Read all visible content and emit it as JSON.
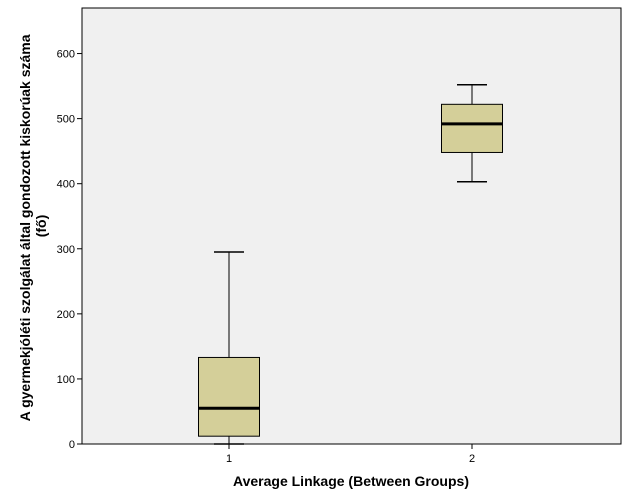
{
  "chart_data": {
    "type": "boxplot",
    "xlabel": "Average Linkage (Between Groups)",
    "ylabel_line1": "A gyermekjóléti szolgálat által gondozott kiskorúak száma",
    "ylabel_line2": "(fő)",
    "categories": [
      "1",
      "2"
    ],
    "ylim": [
      0,
      670
    ],
    "yticks": [
      0,
      100,
      200,
      300,
      400,
      500,
      600
    ],
    "ytick_labels": [
      "0",
      "100",
      "200",
      "300",
      "400",
      "500",
      "600"
    ],
    "boxes": [
      {
        "category": "1",
        "min": 0,
        "q1": 12,
        "median": 55,
        "q3": 133,
        "max": 295
      },
      {
        "category": "2",
        "min": 403,
        "q1": 448,
        "median": 492,
        "q3": 522,
        "max": 552
      }
    ],
    "grid": false,
    "colors": {
      "plot_background": "#f0f0f0",
      "box_fill": "#d4cf99",
      "box_stroke": "#000000",
      "median": "#000000"
    }
  }
}
